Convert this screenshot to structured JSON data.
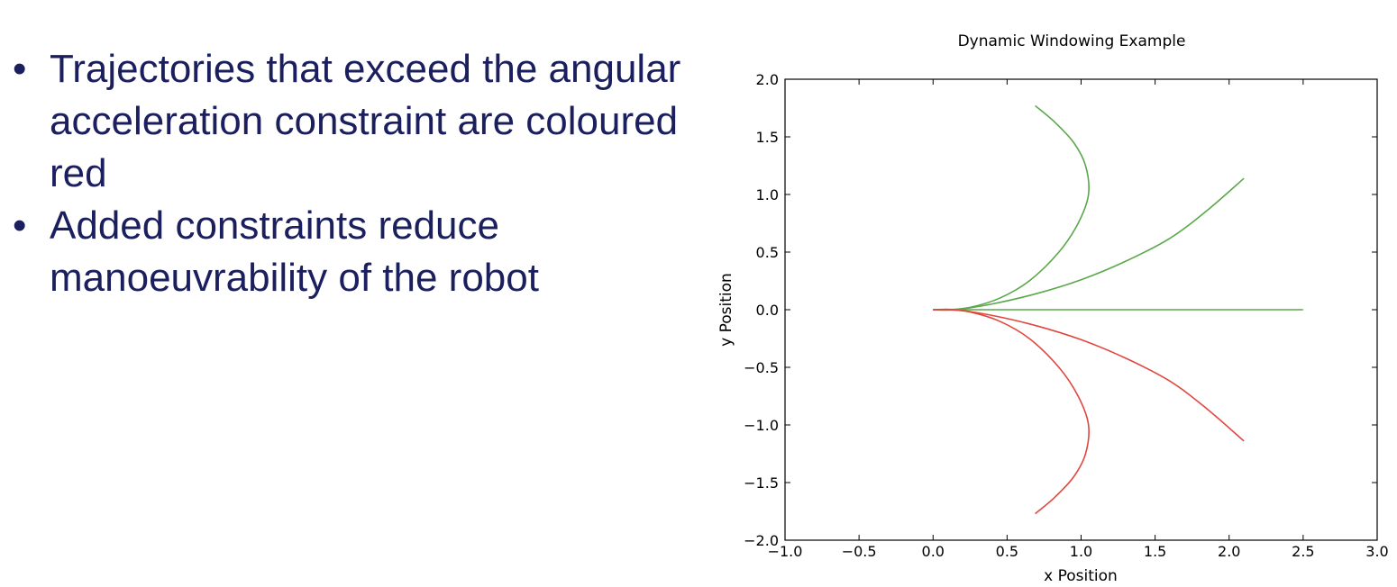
{
  "slide": {
    "bullets": [
      {
        "text": "Trajectories that exceed the angular acceleration constraint are coloured red"
      },
      {
        "text": "Added constraints reduce manoeuvrability of the robot"
      }
    ],
    "text_color": "#1b1f5e"
  },
  "chart_data": {
    "type": "line",
    "title": "Dynamic Windowing Example",
    "xlabel": "x Position",
    "ylabel": "y Position",
    "xlim": [
      -1.0,
      3.0
    ],
    "ylim": [
      -2.0,
      2.0
    ],
    "xticks": [
      "−1.0",
      "−0.5",
      "0.0",
      "0.5",
      "1.0",
      "1.5",
      "2.0",
      "2.5",
      "3.0"
    ],
    "yticks": [
      "2.0",
      "1.5",
      "1.0",
      "0.5",
      "0.0",
      "−0.5",
      "−1.0",
      "−1.5",
      "−2.0"
    ],
    "grid": false,
    "series": [
      {
        "color": "#5aa84a",
        "x": [
          0.0,
          0.1,
          0.25,
          0.45,
          0.65,
          0.85,
          0.98,
          1.05,
          1.03,
          0.95,
          0.82,
          0.69
        ],
        "y": [
          0.0,
          0.0,
          0.02,
          0.1,
          0.25,
          0.5,
          0.75,
          1.0,
          1.25,
          1.45,
          1.63,
          1.77
        ]
      },
      {
        "color": "#5aa84a",
        "x": [
          0.0,
          0.15,
          0.4,
          0.7,
          1.0,
          1.3,
          1.6,
          1.85,
          2.1
        ],
        "y": [
          0.0,
          0.0,
          0.05,
          0.14,
          0.26,
          0.42,
          0.62,
          0.86,
          1.14
        ]
      },
      {
        "color": "#5aa84a",
        "x": [
          0.0,
          2.5
        ],
        "y": [
          0.0,
          0.0
        ]
      },
      {
        "color": "#e0473f",
        "x": [
          0.0,
          0.15,
          0.4,
          0.7,
          1.0,
          1.3,
          1.6,
          1.85,
          2.1
        ],
        "y": [
          0.0,
          0.0,
          -0.05,
          -0.14,
          -0.26,
          -0.42,
          -0.62,
          -0.86,
          -1.14
        ]
      },
      {
        "color": "#e0473f",
        "x": [
          0.0,
          0.1,
          0.25,
          0.45,
          0.65,
          0.85,
          0.98,
          1.05,
          1.03,
          0.95,
          0.82,
          0.69
        ],
        "y": [
          0.0,
          0.0,
          -0.02,
          -0.1,
          -0.25,
          -0.5,
          -0.75,
          -1.0,
          -1.25,
          -1.45,
          -1.63,
          -1.77
        ]
      }
    ]
  }
}
